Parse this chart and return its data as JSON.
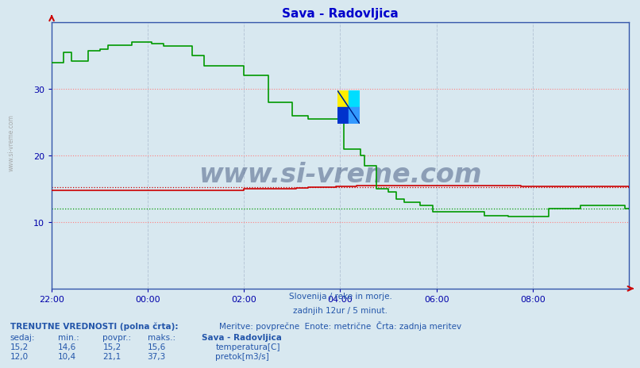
{
  "title": "Sava - Radovljica",
  "title_color": "#0000cc",
  "bg_color": "#d8e8f0",
  "plot_bg_color": "#d8e8f0",
  "grid_color_h_major": "#ff8080",
  "grid_color_v": "#b8c8d8",
  "ytick_color": "#0000aa",
  "xtick_color": "#0000aa",
  "subtitle_color": "#2255aa",
  "bottom_text_color": "#2255aa",
  "watermark_color": "#1a3060",
  "temp_color": "#cc0000",
  "flow_color": "#009900",
  "temp_avg": 15.2,
  "flow_avg": 12.0,
  "ylim": [
    0,
    40
  ],
  "yticks": [
    10,
    20,
    30
  ],
  "x_tick_labels": [
    "22:00",
    "00:00",
    "02:00",
    "04:00",
    "06:00",
    "08:00"
  ],
  "x_tick_positions": [
    0,
    24,
    48,
    72,
    96,
    120
  ],
  "total_points": 145,
  "subtitle_lines": [
    "Slovenija / reke in morje.",
    "zadnjih 12ur / 5 minut.",
    "Meritve: povprečne  Enote: metrične  Črta: zadnja meritev"
  ],
  "bottom_label": "TRENUTNE VREDNOSTI (polna črta):",
  "bottom_cols_header": [
    "sedaj:",
    "min.:",
    "povpr.:",
    "maks.:",
    "Sava - Radovljica"
  ],
  "bottom_rows": [
    {
      "values": [
        "15,2",
        "14,6",
        "15,2",
        "15,6"
      ],
      "color": "#cc0000",
      "label": "temperatura[C]"
    },
    {
      "values": [
        "12,0",
        "10,4",
        "21,1",
        "37,3"
      ],
      "color": "#009900",
      "label": "pretok[m3/s]"
    }
  ],
  "temp_data": [
    14.8,
    14.8,
    14.8,
    14.8,
    14.8,
    14.8,
    14.8,
    14.8,
    14.8,
    14.8,
    14.8,
    14.8,
    14.8,
    14.8,
    14.8,
    14.8,
    14.8,
    14.8,
    14.8,
    14.8,
    14.8,
    14.8,
    14.8,
    14.8,
    14.8,
    14.8,
    14.8,
    14.8,
    14.8,
    14.8,
    14.8,
    14.8,
    14.8,
    14.8,
    14.8,
    14.8,
    14.8,
    14.8,
    14.8,
    14.8,
    14.8,
    14.8,
    14.8,
    14.8,
    14.8,
    14.8,
    14.8,
    14.8,
    15.0,
    15.0,
    15.0,
    15.0,
    15.0,
    15.0,
    15.0,
    15.0,
    15.0,
    15.0,
    15.0,
    15.0,
    15.0,
    15.1,
    15.1,
    15.1,
    15.2,
    15.2,
    15.2,
    15.2,
    15.2,
    15.2,
    15.2,
    15.4,
    15.4,
    15.4,
    15.4,
    15.4,
    15.5,
    15.5,
    15.5,
    15.5,
    15.5,
    15.5,
    15.5,
    15.5,
    15.5,
    15.5,
    15.5,
    15.5,
    15.5,
    15.5,
    15.5,
    15.5,
    15.5,
    15.5,
    15.5,
    15.5,
    15.5,
    15.5,
    15.5,
    15.5,
    15.5,
    15.5,
    15.5,
    15.5,
    15.5,
    15.5,
    15.5,
    15.5,
    15.5,
    15.5,
    15.5,
    15.5,
    15.5,
    15.5,
    15.5,
    15.5,
    15.5,
    15.4,
    15.4,
    15.4,
    15.4,
    15.4,
    15.4,
    15.4,
    15.4,
    15.4,
    15.4,
    15.4,
    15.4,
    15.4,
    15.4,
    15.4,
    15.4,
    15.4,
    15.4,
    15.4,
    15.4,
    15.4,
    15.4,
    15.4,
    15.4,
    15.4,
    15.4,
    15.4,
    15.2
  ],
  "flow_data": [
    34.0,
    34.0,
    34.0,
    35.5,
    35.5,
    34.2,
    34.2,
    34.2,
    34.2,
    35.8,
    35.8,
    35.8,
    36.0,
    36.0,
    36.6,
    36.6,
    36.6,
    36.6,
    36.6,
    36.6,
    37.0,
    37.0,
    37.0,
    37.0,
    37.0,
    36.8,
    36.8,
    36.8,
    36.5,
    36.5,
    36.5,
    36.5,
    36.5,
    36.5,
    36.5,
    35.0,
    35.0,
    35.0,
    33.5,
    33.5,
    33.5,
    33.5,
    33.5,
    33.5,
    33.5,
    33.5,
    33.5,
    33.5,
    32.0,
    32.0,
    32.0,
    32.0,
    32.0,
    32.0,
    28.0,
    28.0,
    28.0,
    28.0,
    28.0,
    28.0,
    26.0,
    26.0,
    26.0,
    26.0,
    25.5,
    25.5,
    25.5,
    25.5,
    25.5,
    25.5,
    25.5,
    25.5,
    25.5,
    21.0,
    21.0,
    21.0,
    21.0,
    20.0,
    18.5,
    18.5,
    18.5,
    15.0,
    15.0,
    15.0,
    14.5,
    14.5,
    13.5,
    13.5,
    13.0,
    13.0,
    13.0,
    13.0,
    12.5,
    12.5,
    12.5,
    11.5,
    11.5,
    11.5,
    11.5,
    11.5,
    11.5,
    11.5,
    11.5,
    11.5,
    11.5,
    11.5,
    11.5,
    11.5,
    11.0,
    11.0,
    11.0,
    11.0,
    11.0,
    11.0,
    10.8,
    10.8,
    10.8,
    10.8,
    10.8,
    10.8,
    10.8,
    10.8,
    10.8,
    10.8,
    12.0,
    12.0,
    12.0,
    12.0,
    12.0,
    12.0,
    12.0,
    12.0,
    12.5,
    12.5,
    12.5,
    12.5,
    12.5,
    12.5,
    12.5,
    12.5,
    12.5,
    12.5,
    12.5,
    12.0,
    12.0
  ]
}
